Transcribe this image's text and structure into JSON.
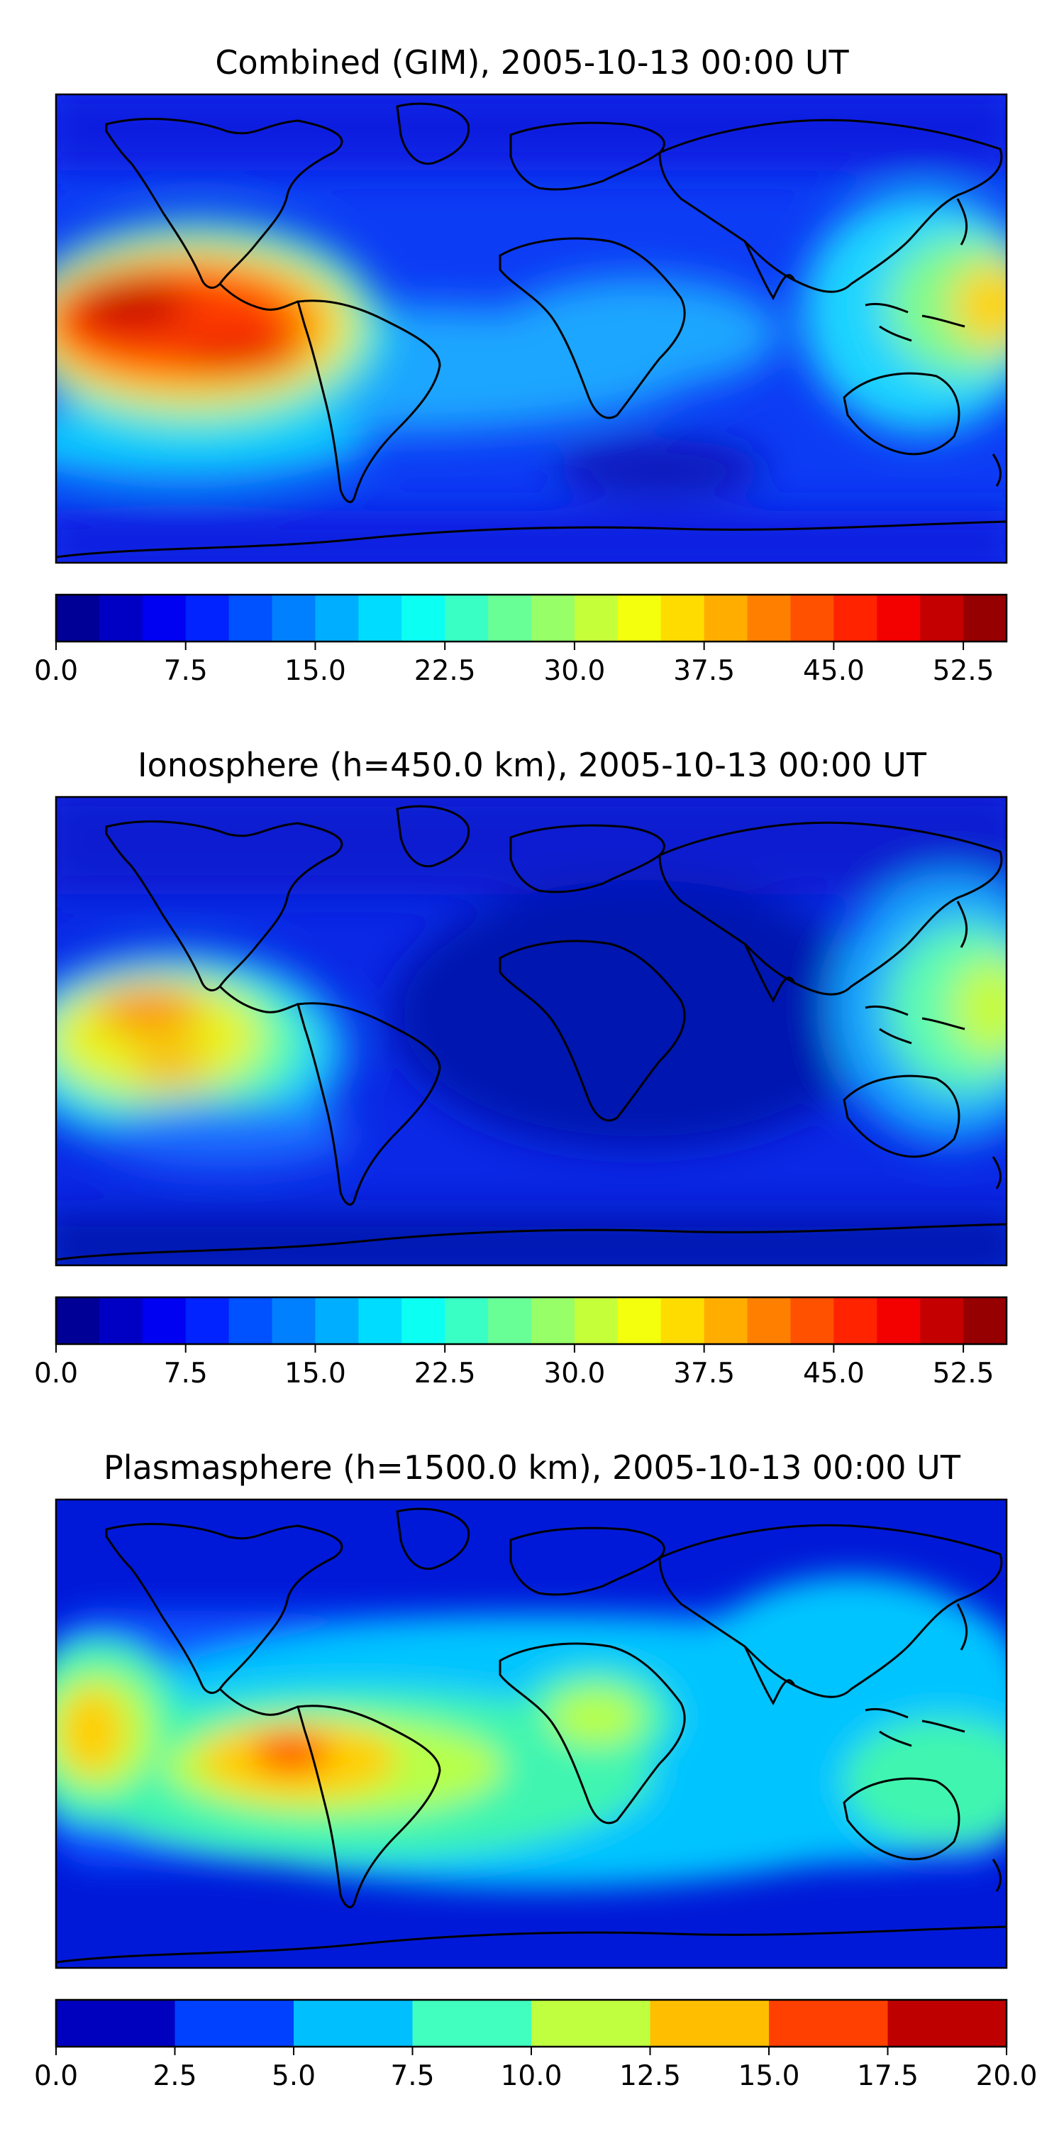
{
  "panels": [
    {
      "title": "Combined (GIM), 2005-10-13 00:00 UT",
      "map_style": "gim",
      "colorbar": {
        "levels": 22,
        "min": 0.0,
        "max": 55.0,
        "tick_values": [
          0.0,
          7.5,
          15.0,
          22.5,
          30.0,
          37.5,
          45.0,
          52.5
        ],
        "tick_labels": [
          "0.0",
          "7.5",
          "15.0",
          "22.5",
          "30.0",
          "37.5",
          "45.0",
          "52.5"
        ]
      }
    },
    {
      "title": "Ionosphere  (h=450.0 km), 2005-10-13 00:00 UT",
      "map_style": "iono",
      "colorbar": {
        "levels": 22,
        "min": 0.0,
        "max": 55.0,
        "tick_values": [
          0.0,
          7.5,
          15.0,
          22.5,
          30.0,
          37.5,
          45.0,
          52.5
        ],
        "tick_labels": [
          "0.0",
          "7.5",
          "15.0",
          "22.5",
          "30.0",
          "37.5",
          "45.0",
          "52.5"
        ]
      }
    },
    {
      "title": "Plasmasphere (h=1500.0 km), 2005-10-13 00:00 UT",
      "map_style": "plasma",
      "colorbar": {
        "levels": 8,
        "min": 0.0,
        "max": 20.0,
        "tick_values": [
          0.0,
          2.5,
          5.0,
          7.5,
          10.0,
          12.5,
          15.0,
          17.5,
          20.0
        ],
        "tick_labels": [
          "0.0",
          "2.5",
          "5.0",
          "7.5",
          "10.0",
          "12.5",
          "15.0",
          "17.5",
          "20.0"
        ]
      }
    }
  ],
  "colormap": "jet",
  "coastline_color": "#000000"
}
